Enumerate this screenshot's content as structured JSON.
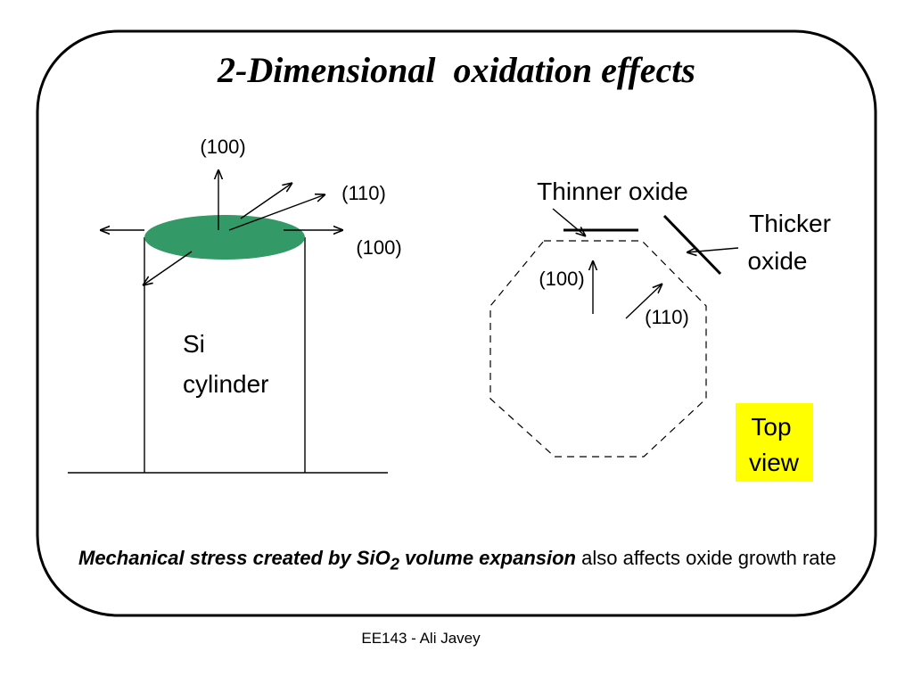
{
  "title": "2-Dimensional  oxidation effects",
  "cylinder": {
    "labels": [
      "(100)",
      "(110)",
      "(100)"
    ],
    "name": [
      "Si",
      "cylinder"
    ]
  },
  "top_view": {
    "thinner": "Thinner oxide",
    "thicker": [
      "Thicker",
      "oxide"
    ],
    "labels": [
      "(100)",
      "(110)"
    ],
    "badge": [
      "Top",
      "view"
    ]
  },
  "caption": {
    "bold": "Mechanical stress created by SiO",
    "sub": "2",
    "bold2": " volume expansion",
    "rest": " also affects oxide growth rate"
  },
  "footer": "EE143 - Ali Javey"
}
